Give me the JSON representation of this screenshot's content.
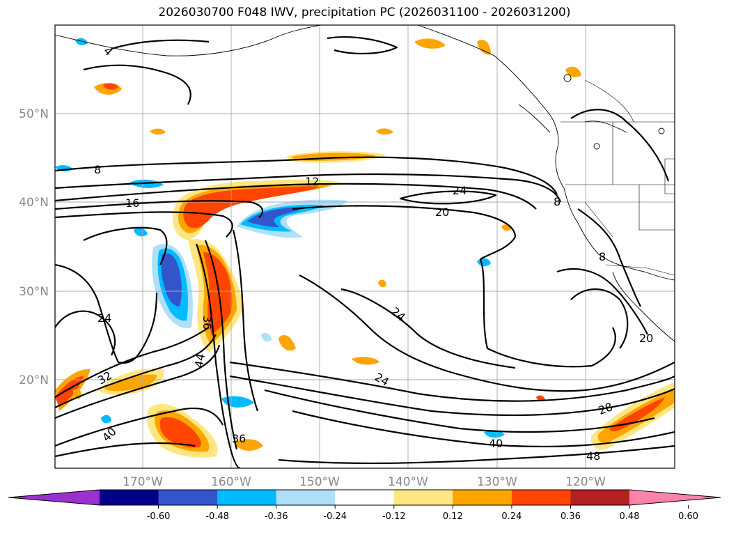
{
  "title": "2026030700 F048 IWV, precipitation PC (2026031100 - 2026031200)",
  "longitude_labels": [
    "170°W",
    "160°W",
    "150°W",
    "140°W",
    "130°W",
    "120°W"
  ],
  "latitude_labels": [
    "50°N",
    "40°N",
    "30°N",
    "20°N"
  ],
  "colorbar": {
    "ticks": [
      "-0.60",
      "-0.48",
      "-0.36",
      "-0.24",
      "-0.12",
      "0.12",
      "0.24",
      "0.36",
      "0.48",
      "0.60"
    ],
    "colors": [
      "#9b30d0",
      "#00008b",
      "#3355cc",
      "#00bbff",
      "#aee0fa",
      "#ffffff",
      "#ffe680",
      "#ffa500",
      "#ff4500",
      "#b22222",
      "#ff82ab"
    ]
  },
  "contour_labels": [
    "8",
    "12",
    "16",
    "20",
    "24",
    "24",
    "24",
    "24",
    "28",
    "32",
    "36",
    "36",
    "40",
    "40",
    "44",
    "48",
    "8",
    "8",
    "20",
    "4"
  ],
  "colors": {
    "contour": "#000000",
    "grid": "#aaaaaa",
    "axis_labels": "#888888"
  }
}
